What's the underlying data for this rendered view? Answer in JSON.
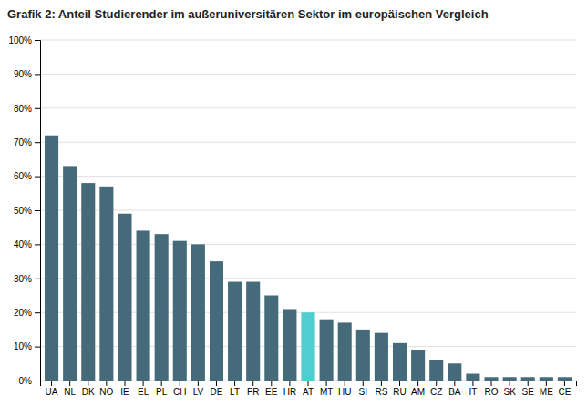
{
  "chart_data": {
    "type": "bar",
    "title": "Grafik 2: Anteil Studierender im außeruniversitären Sektor im europäischen Vergleich",
    "categories": [
      "UA",
      "NL",
      "DK",
      "NO",
      "IE",
      "EL",
      "PL",
      "CH",
      "LV",
      "DE",
      "LT",
      "FR",
      "EE",
      "HR",
      "AT",
      "MT",
      "HU",
      "SI",
      "RS",
      "RU",
      "AM",
      "CZ",
      "BA",
      "IT",
      "RO",
      "SK",
      "SE",
      "ME",
      "CE"
    ],
    "values": [
      72,
      63,
      58,
      57,
      49,
      44,
      43,
      41,
      40,
      35,
      29,
      29,
      25,
      21,
      20,
      18,
      17,
      15,
      14,
      11,
      9,
      6,
      5,
      2,
      1,
      1,
      1,
      1,
      1
    ],
    "colors": [
      "#456b7a",
      "#456b7a",
      "#456b7a",
      "#456b7a",
      "#456b7a",
      "#456b7a",
      "#456b7a",
      "#456b7a",
      "#456b7a",
      "#456b7a",
      "#456b7a",
      "#456b7a",
      "#456b7a",
      "#456b7a",
      "#4ecece",
      "#456b7a",
      "#456b7a",
      "#456b7a",
      "#456b7a",
      "#456b7a",
      "#456b7a",
      "#456b7a",
      "#456b7a",
      "#456b7a",
      "#456b7a",
      "#456b7a",
      "#456b7a",
      "#456b7a",
      "#456b7a"
    ],
    "ylim": [
      0,
      100
    ],
    "yticks": [
      {
        "value": 0,
        "label": "0%"
      },
      {
        "value": 10,
        "label": "10%"
      },
      {
        "value": 20,
        "label": "20%"
      },
      {
        "value": 30,
        "label": "30%"
      },
      {
        "value": 40,
        "label": "40%"
      },
      {
        "value": 50,
        "label": "50%"
      },
      {
        "value": 60,
        "label": "60%"
      },
      {
        "value": 70,
        "label": "70%"
      },
      {
        "value": 80,
        "label": "80%"
      },
      {
        "value": 90,
        "label": "90%"
      },
      {
        "value": 100,
        "label": "100%"
      }
    ],
    "grid": true
  }
}
